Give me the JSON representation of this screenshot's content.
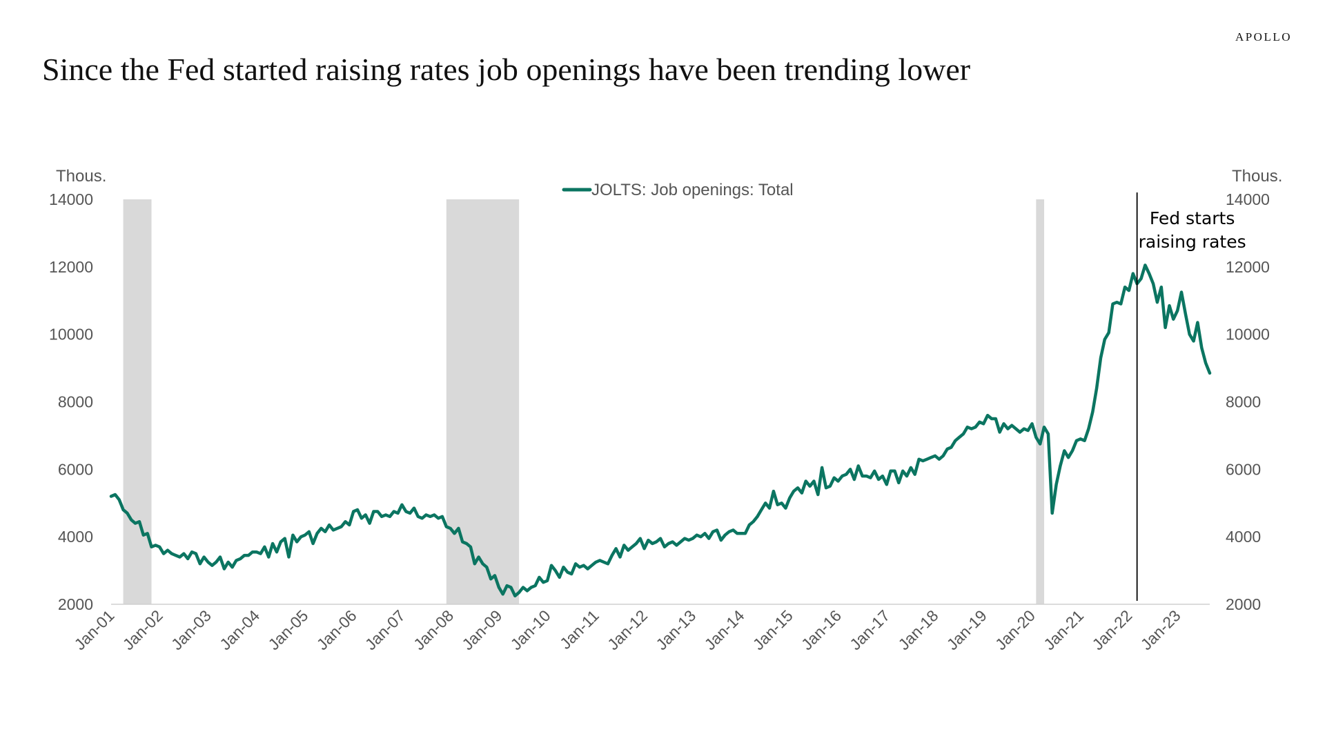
{
  "brand": "APOLLO",
  "chart_data": {
    "type": "line",
    "title": "Since the Fed started raising rates job openings have been trending lower",
    "y_unit_left": "Thous.",
    "y_unit_right": "Thous.",
    "ylim": [
      2000,
      14000
    ],
    "yticks": [
      2000,
      4000,
      6000,
      8000,
      10000,
      12000,
      14000
    ],
    "xlim": [
      "2001-01",
      "2023-06"
    ],
    "x_tick_labels": [
      "Jan-01",
      "Jan-02",
      "Jan-03",
      "Jan-04",
      "Jan-05",
      "Jan-06",
      "Jan-07",
      "Jan-08",
      "Jan-09",
      "Jan-10",
      "Jan-11",
      "Jan-12",
      "Jan-13",
      "Jan-14",
      "Jan-15",
      "Jan-16",
      "Jan-17",
      "Jan-18",
      "Jan-19",
      "Jan-20",
      "Jan-21",
      "Jan-22",
      "Jan-23"
    ],
    "legend": "top-center",
    "grid": false,
    "series": [
      {
        "name": "JOLTS: Job openings: Total",
        "color": "#0b7561",
        "points": [
          [
            "2001-01",
            5200
          ],
          [
            "2001-02",
            5250
          ],
          [
            "2001-03",
            5100
          ],
          [
            "2001-04",
            4800
          ],
          [
            "2001-05",
            4700
          ],
          [
            "2001-06",
            4500
          ],
          [
            "2001-07",
            4400
          ],
          [
            "2001-08",
            4450
          ],
          [
            "2001-09",
            4050
          ],
          [
            "2001-10",
            4100
          ],
          [
            "2001-11",
            3700
          ],
          [
            "2001-12",
            3750
          ],
          [
            "2002-01",
            3700
          ],
          [
            "2002-02",
            3500
          ],
          [
            "2002-03",
            3600
          ],
          [
            "2002-04",
            3500
          ],
          [
            "2002-05",
            3450
          ],
          [
            "2002-06",
            3400
          ],
          [
            "2002-07",
            3500
          ],
          [
            "2002-08",
            3350
          ],
          [
            "2002-09",
            3550
          ],
          [
            "2002-10",
            3500
          ],
          [
            "2002-11",
            3200
          ],
          [
            "2002-12",
            3400
          ],
          [
            "2003-01",
            3250
          ],
          [
            "2003-02",
            3150
          ],
          [
            "2003-03",
            3250
          ],
          [
            "2003-04",
            3400
          ],
          [
            "2003-05",
            3050
          ],
          [
            "2003-06",
            3250
          ],
          [
            "2003-07",
            3100
          ],
          [
            "2003-08",
            3300
          ],
          [
            "2003-09",
            3350
          ],
          [
            "2003-10",
            3450
          ],
          [
            "2003-11",
            3450
          ],
          [
            "2003-12",
            3550
          ],
          [
            "2004-01",
            3550
          ],
          [
            "2004-02",
            3500
          ],
          [
            "2004-03",
            3700
          ],
          [
            "2004-04",
            3400
          ],
          [
            "2004-05",
            3800
          ],
          [
            "2004-06",
            3550
          ],
          [
            "2004-07",
            3850
          ],
          [
            "2004-08",
            3950
          ],
          [
            "2004-09",
            3400
          ],
          [
            "2004-10",
            4050
          ],
          [
            "2004-11",
            3850
          ],
          [
            "2004-12",
            4000
          ],
          [
            "2005-01",
            4050
          ],
          [
            "2005-02",
            4150
          ],
          [
            "2005-03",
            3800
          ],
          [
            "2005-04",
            4100
          ],
          [
            "2005-05",
            4250
          ],
          [
            "2005-06",
            4150
          ],
          [
            "2005-07",
            4350
          ],
          [
            "2005-08",
            4200
          ],
          [
            "2005-09",
            4250
          ],
          [
            "2005-10",
            4300
          ],
          [
            "2005-11",
            4450
          ],
          [
            "2005-12",
            4350
          ],
          [
            "2006-01",
            4750
          ],
          [
            "2006-02",
            4800
          ],
          [
            "2006-03",
            4550
          ],
          [
            "2006-04",
            4650
          ],
          [
            "2006-05",
            4400
          ],
          [
            "2006-06",
            4750
          ],
          [
            "2006-07",
            4750
          ],
          [
            "2006-08",
            4600
          ],
          [
            "2006-09",
            4650
          ],
          [
            "2006-10",
            4600
          ],
          [
            "2006-11",
            4750
          ],
          [
            "2006-12",
            4700
          ],
          [
            "2007-01",
            4950
          ],
          [
            "2007-02",
            4750
          ],
          [
            "2007-03",
            4700
          ],
          [
            "2007-04",
            4850
          ],
          [
            "2007-05",
            4600
          ],
          [
            "2007-06",
            4550
          ],
          [
            "2007-07",
            4650
          ],
          [
            "2007-08",
            4600
          ],
          [
            "2007-09",
            4650
          ],
          [
            "2007-10",
            4550
          ],
          [
            "2007-11",
            4600
          ],
          [
            "2007-12",
            4300
          ],
          [
            "2008-01",
            4250
          ],
          [
            "2008-02",
            4100
          ],
          [
            "2008-03",
            4250
          ],
          [
            "2008-04",
            3850
          ],
          [
            "2008-05",
            3800
          ],
          [
            "2008-06",
            3700
          ],
          [
            "2008-07",
            3200
          ],
          [
            "2008-08",
            3400
          ],
          [
            "2008-09",
            3200
          ],
          [
            "2008-10",
            3100
          ],
          [
            "2008-11",
            2750
          ],
          [
            "2008-12",
            2850
          ],
          [
            "2009-01",
            2500
          ],
          [
            "2009-02",
            2300
          ],
          [
            "2009-03",
            2550
          ],
          [
            "2009-04",
            2500
          ],
          [
            "2009-05",
            2250
          ],
          [
            "2009-06",
            2350
          ],
          [
            "2009-07",
            2500
          ],
          [
            "2009-08",
            2400
          ],
          [
            "2009-09",
            2500
          ],
          [
            "2009-10",
            2550
          ],
          [
            "2009-11",
            2800
          ],
          [
            "2009-12",
            2650
          ],
          [
            "2010-01",
            2700
          ],
          [
            "2010-02",
            3150
          ],
          [
            "2010-03",
            3000
          ],
          [
            "2010-04",
            2800
          ],
          [
            "2010-05",
            3100
          ],
          [
            "2010-06",
            2950
          ],
          [
            "2010-07",
            2900
          ],
          [
            "2010-08",
            3200
          ],
          [
            "2010-09",
            3100
          ],
          [
            "2010-10",
            3150
          ],
          [
            "2010-11",
            3050
          ],
          [
            "2010-12",
            3150
          ],
          [
            "2011-01",
            3250
          ],
          [
            "2011-02",
            3300
          ],
          [
            "2011-03",
            3250
          ],
          [
            "2011-04",
            3200
          ],
          [
            "2011-05",
            3450
          ],
          [
            "2011-06",
            3650
          ],
          [
            "2011-07",
            3400
          ],
          [
            "2011-08",
            3750
          ],
          [
            "2011-09",
            3600
          ],
          [
            "2011-10",
            3700
          ],
          [
            "2011-11",
            3800
          ],
          [
            "2011-12",
            3950
          ],
          [
            "2012-01",
            3650
          ],
          [
            "2012-02",
            3900
          ],
          [
            "2012-03",
            3800
          ],
          [
            "2012-04",
            3850
          ],
          [
            "2012-05",
            3950
          ],
          [
            "2012-06",
            3700
          ],
          [
            "2012-07",
            3800
          ],
          [
            "2012-08",
            3850
          ],
          [
            "2012-09",
            3750
          ],
          [
            "2012-10",
            3850
          ],
          [
            "2012-11",
            3950
          ],
          [
            "2012-12",
            3900
          ],
          [
            "2013-01",
            3950
          ],
          [
            "2013-02",
            4050
          ],
          [
            "2013-03",
            4000
          ],
          [
            "2013-04",
            4100
          ],
          [
            "2013-05",
            3950
          ],
          [
            "2013-06",
            4150
          ],
          [
            "2013-07",
            4200
          ],
          [
            "2013-08",
            3900
          ],
          [
            "2013-09",
            4050
          ],
          [
            "2013-10",
            4150
          ],
          [
            "2013-11",
            4200
          ],
          [
            "2013-12",
            4100
          ],
          [
            "2014-01",
            4100
          ],
          [
            "2014-02",
            4100
          ],
          [
            "2014-03",
            4350
          ],
          [
            "2014-04",
            4450
          ],
          [
            "2014-05",
            4600
          ],
          [
            "2014-06",
            4800
          ],
          [
            "2014-07",
            5000
          ],
          [
            "2014-08",
            4850
          ],
          [
            "2014-09",
            5350
          ],
          [
            "2014-10",
            4950
          ],
          [
            "2014-11",
            5000
          ],
          [
            "2014-12",
            4850
          ],
          [
            "2015-01",
            5150
          ],
          [
            "2015-02",
            5350
          ],
          [
            "2015-03",
            5450
          ],
          [
            "2015-04",
            5300
          ],
          [
            "2015-05",
            5650
          ],
          [
            "2015-06",
            5500
          ],
          [
            "2015-07",
            5650
          ],
          [
            "2015-08",
            5250
          ],
          [
            "2015-09",
            6050
          ],
          [
            "2015-10",
            5450
          ],
          [
            "2015-11",
            5500
          ],
          [
            "2015-12",
            5750
          ],
          [
            "2016-01",
            5650
          ],
          [
            "2016-02",
            5800
          ],
          [
            "2016-03",
            5850
          ],
          [
            "2016-04",
            6000
          ],
          [
            "2016-05",
            5700
          ],
          [
            "2016-06",
            6100
          ],
          [
            "2016-07",
            5800
          ],
          [
            "2016-08",
            5800
          ],
          [
            "2016-09",
            5750
          ],
          [
            "2016-10",
            5950
          ],
          [
            "2016-11",
            5700
          ],
          [
            "2016-12",
            5800
          ],
          [
            "2017-01",
            5550
          ],
          [
            "2017-02",
            5950
          ],
          [
            "2017-03",
            5950
          ],
          [
            "2017-04",
            5600
          ],
          [
            "2017-05",
            5950
          ],
          [
            "2017-06",
            5800
          ],
          [
            "2017-07",
            6050
          ],
          [
            "2017-08",
            5850
          ],
          [
            "2017-09",
            6300
          ],
          [
            "2017-10",
            6250
          ],
          [
            "2017-11",
            6300
          ],
          [
            "2017-12",
            6350
          ],
          [
            "2018-01",
            6400
          ],
          [
            "2018-02",
            6300
          ],
          [
            "2018-03",
            6400
          ],
          [
            "2018-04",
            6600
          ],
          [
            "2018-05",
            6650
          ],
          [
            "2018-06",
            6850
          ],
          [
            "2018-07",
            6950
          ],
          [
            "2018-08",
            7050
          ],
          [
            "2018-09",
            7250
          ],
          [
            "2018-10",
            7200
          ],
          [
            "2018-11",
            7250
          ],
          [
            "2018-12",
            7400
          ],
          [
            "2019-01",
            7350
          ],
          [
            "2019-02",
            7600
          ],
          [
            "2019-03",
            7500
          ],
          [
            "2019-04",
            7500
          ],
          [
            "2019-05",
            7100
          ],
          [
            "2019-06",
            7350
          ],
          [
            "2019-07",
            7200
          ],
          [
            "2019-08",
            7300
          ],
          [
            "2019-09",
            7200
          ],
          [
            "2019-10",
            7100
          ],
          [
            "2019-11",
            7200
          ],
          [
            "2019-12",
            7150
          ],
          [
            "2020-01",
            7350
          ],
          [
            "2020-02",
            6950
          ],
          [
            "2020-03",
            6750
          ],
          [
            "2020-04",
            7250
          ],
          [
            "2020-05",
            7050
          ],
          [
            "2020-06",
            4700
          ],
          [
            "2020-07",
            5550
          ],
          [
            "2020-08",
            6100
          ],
          [
            "2020-09",
            6550
          ],
          [
            "2020-10",
            6350
          ],
          [
            "2020-11",
            6550
          ],
          [
            "2020-12",
            6850
          ],
          [
            "2021-01",
            6900
          ],
          [
            "2021-02",
            6850
          ],
          [
            "2021-03",
            7200
          ],
          [
            "2021-04",
            7700
          ],
          [
            "2021-05",
            8400
          ],
          [
            "2021-06",
            9300
          ],
          [
            "2021-07",
            9850
          ],
          [
            "2021-08",
            10050
          ],
          [
            "2021-09",
            10900
          ],
          [
            "2021-10",
            10950
          ],
          [
            "2021-11",
            10900
          ],
          [
            "2021-12",
            11400
          ],
          [
            "2022-01",
            11300
          ],
          [
            "2022-02",
            11800
          ],
          [
            "2022-03",
            11500
          ],
          [
            "2022-04",
            11650
          ],
          [
            "2022-05",
            12050
          ],
          [
            "2022-06",
            11800
          ],
          [
            "2022-07",
            11500
          ],
          [
            "2022-08",
            10950
          ],
          [
            "2022-09",
            11400
          ],
          [
            "2022-10",
            10200
          ],
          [
            "2022-11",
            10850
          ],
          [
            "2022-12",
            10450
          ],
          [
            "2023-01",
            10700
          ],
          [
            "2023-02",
            11250
          ],
          [
            "2023-03",
            10600
          ],
          [
            "2023-04",
            10000
          ],
          [
            "2023-05",
            9800
          ],
          [
            "2023-06",
            10350
          ],
          [
            "2023-07",
            9600
          ],
          [
            "2023-08",
            9150
          ],
          [
            "2023-09",
            8850
          ]
        ]
      }
    ],
    "recessions": [
      [
        "2001-04",
        "2001-11"
      ],
      [
        "2007-12",
        "2009-06"
      ],
      [
        "2020-02",
        "2020-04"
      ]
    ],
    "recession_color": "#d9d9d9",
    "event_line": {
      "x": "2022-03",
      "label_lines": [
        "Fed starts",
        "raising rates"
      ]
    }
  }
}
